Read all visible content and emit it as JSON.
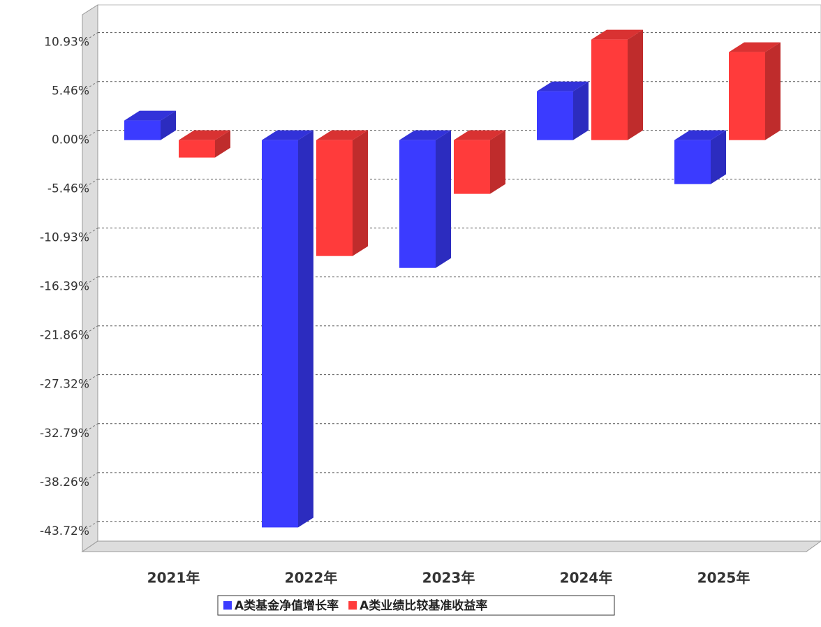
{
  "chart_data": {
    "type": "bar3d",
    "categories": [
      "2021年",
      "2022年",
      "2023年",
      "2024年",
      "2025年"
    ],
    "series": [
      {
        "name": "A类基金净值增长率",
        "color": "#3b3bff",
        "values": [
          2.19,
          -43.3,
          -14.29,
          5.46,
          -4.92
        ]
      },
      {
        "name": "A类业绩比较基准收益率",
        "color": "#ff3b3b",
        "values": [
          -1.95,
          -12.96,
          -6.01,
          11.24,
          9.84
        ]
      }
    ],
    "ylim": [
      -46,
      14.1
    ],
    "yticks": [
      {
        "value": 10.93,
        "label": "10.93%"
      },
      {
        "value": 5.46,
        "label": "5.46%"
      },
      {
        "value": 0,
        "label": "0.00%"
      },
      {
        "value": -5.46,
        "label": "-5.46%"
      },
      {
        "value": -10.93,
        "label": "-10.93%"
      },
      {
        "value": -16.39,
        "label": "-16.39%"
      },
      {
        "value": -21.86,
        "label": "-21.86%"
      },
      {
        "value": -27.32,
        "label": "-27.32%"
      },
      {
        "value": -32.79,
        "label": "-32.79%"
      },
      {
        "value": -38.26,
        "label": "-38.26%"
      },
      {
        "value": -43.72,
        "label": "-43.72%"
      }
    ],
    "grid": true
  }
}
